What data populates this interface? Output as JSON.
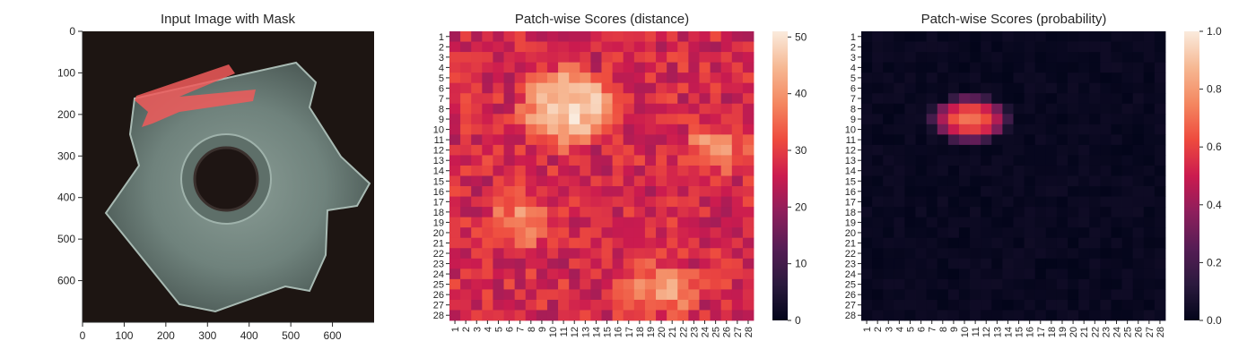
{
  "panels": [
    {
      "title": "Input Image with Mask",
      "type": "image",
      "x_ticks": [
        "0",
        "100",
        "200",
        "300",
        "400",
        "500",
        "600"
      ],
      "y_ticks": [
        "0",
        "100",
        "200",
        "300",
        "400",
        "500",
        "600"
      ]
    },
    {
      "title": "Patch-wise Scores (distance)",
      "type": "heatmap",
      "colorbar_ticks": [
        "0",
        "10",
        "20",
        "30",
        "40",
        "50"
      ]
    },
    {
      "title": "Patch-wise Scores (probability)",
      "type": "heatmap",
      "colorbar_ticks": [
        "0.0",
        "0.2",
        "0.4",
        "0.6",
        "0.8",
        "1.0"
      ]
    }
  ],
  "chart_data": [
    {
      "type": "image",
      "title": "Input Image with Mask",
      "xlim": [
        0,
        700
      ],
      "ylim": [
        700,
        0
      ],
      "x_ticks": [
        0,
        100,
        200,
        300,
        400,
        500,
        600
      ],
      "y_ticks": [
        0,
        100,
        200,
        300,
        400,
        500,
        600
      ],
      "mask_color": "#f05a5a"
    },
    {
      "type": "heatmap",
      "title": "Patch-wise Scores (distance)",
      "rows": 28,
      "cols": 28,
      "x_categories": [
        "1",
        "2",
        "3",
        "4",
        "5",
        "6",
        "7",
        "8",
        "9",
        "10",
        "11",
        "12",
        "13",
        "14",
        "15",
        "16",
        "17",
        "18",
        "19",
        "20",
        "21",
        "22",
        "23",
        "24",
        "25",
        "26",
        "27",
        "28"
      ],
      "y_categories": [
        "1",
        "2",
        "3",
        "4",
        "5",
        "6",
        "7",
        "8",
        "9",
        "10",
        "11",
        "12",
        "13",
        "14",
        "15",
        "16",
        "17",
        "18",
        "19",
        "20",
        "21",
        "22",
        "23",
        "24",
        "25",
        "26",
        "27",
        "28"
      ],
      "colorbar_range": [
        0,
        51
      ],
      "colorbar_ticks": [
        0,
        10,
        20,
        30,
        40,
        50
      ],
      "colormap": "rocket",
      "regions": [
        {
          "rows": [
            3,
            11
          ],
          "cols": [
            6,
            15
          ],
          "peak": 50
        },
        {
          "rows": [
            9,
            13
          ],
          "cols": [
            21,
            27
          ],
          "peak": 40
        },
        {
          "rows": [
            15,
            21
          ],
          "cols": [
            3,
            9
          ],
          "peak": 38
        },
        {
          "rows": [
            22,
            27
          ],
          "cols": [
            15,
            23
          ],
          "peak": 40
        }
      ],
      "background_value": 27
    },
    {
      "type": "heatmap",
      "title": "Patch-wise Scores (probability)",
      "rows": 28,
      "cols": 28,
      "x_categories": [
        "1",
        "2",
        "3",
        "4",
        "5",
        "6",
        "7",
        "8",
        "9",
        "10",
        "11",
        "12",
        "13",
        "14",
        "15",
        "16",
        "17",
        "18",
        "19",
        "20",
        "21",
        "22",
        "23",
        "24",
        "25",
        "26",
        "27",
        "28"
      ],
      "y_categories": [
        "1",
        "2",
        "3",
        "4",
        "5",
        "6",
        "7",
        "8",
        "9",
        "10",
        "11",
        "12",
        "13",
        "14",
        "15",
        "16",
        "17",
        "18",
        "19",
        "20",
        "21",
        "22",
        "23",
        "24",
        "25",
        "26",
        "27",
        "28"
      ],
      "colorbar_range": [
        0,
        1
      ],
      "colorbar_ticks": [
        0.0,
        0.2,
        0.4,
        0.6,
        0.8,
        1.0
      ],
      "colormap": "rocket",
      "regions": [
        {
          "rows": [
            6,
            10
          ],
          "cols": [
            6,
            13
          ],
          "peak": 0.72
        }
      ],
      "background_value": 0.02
    }
  ]
}
